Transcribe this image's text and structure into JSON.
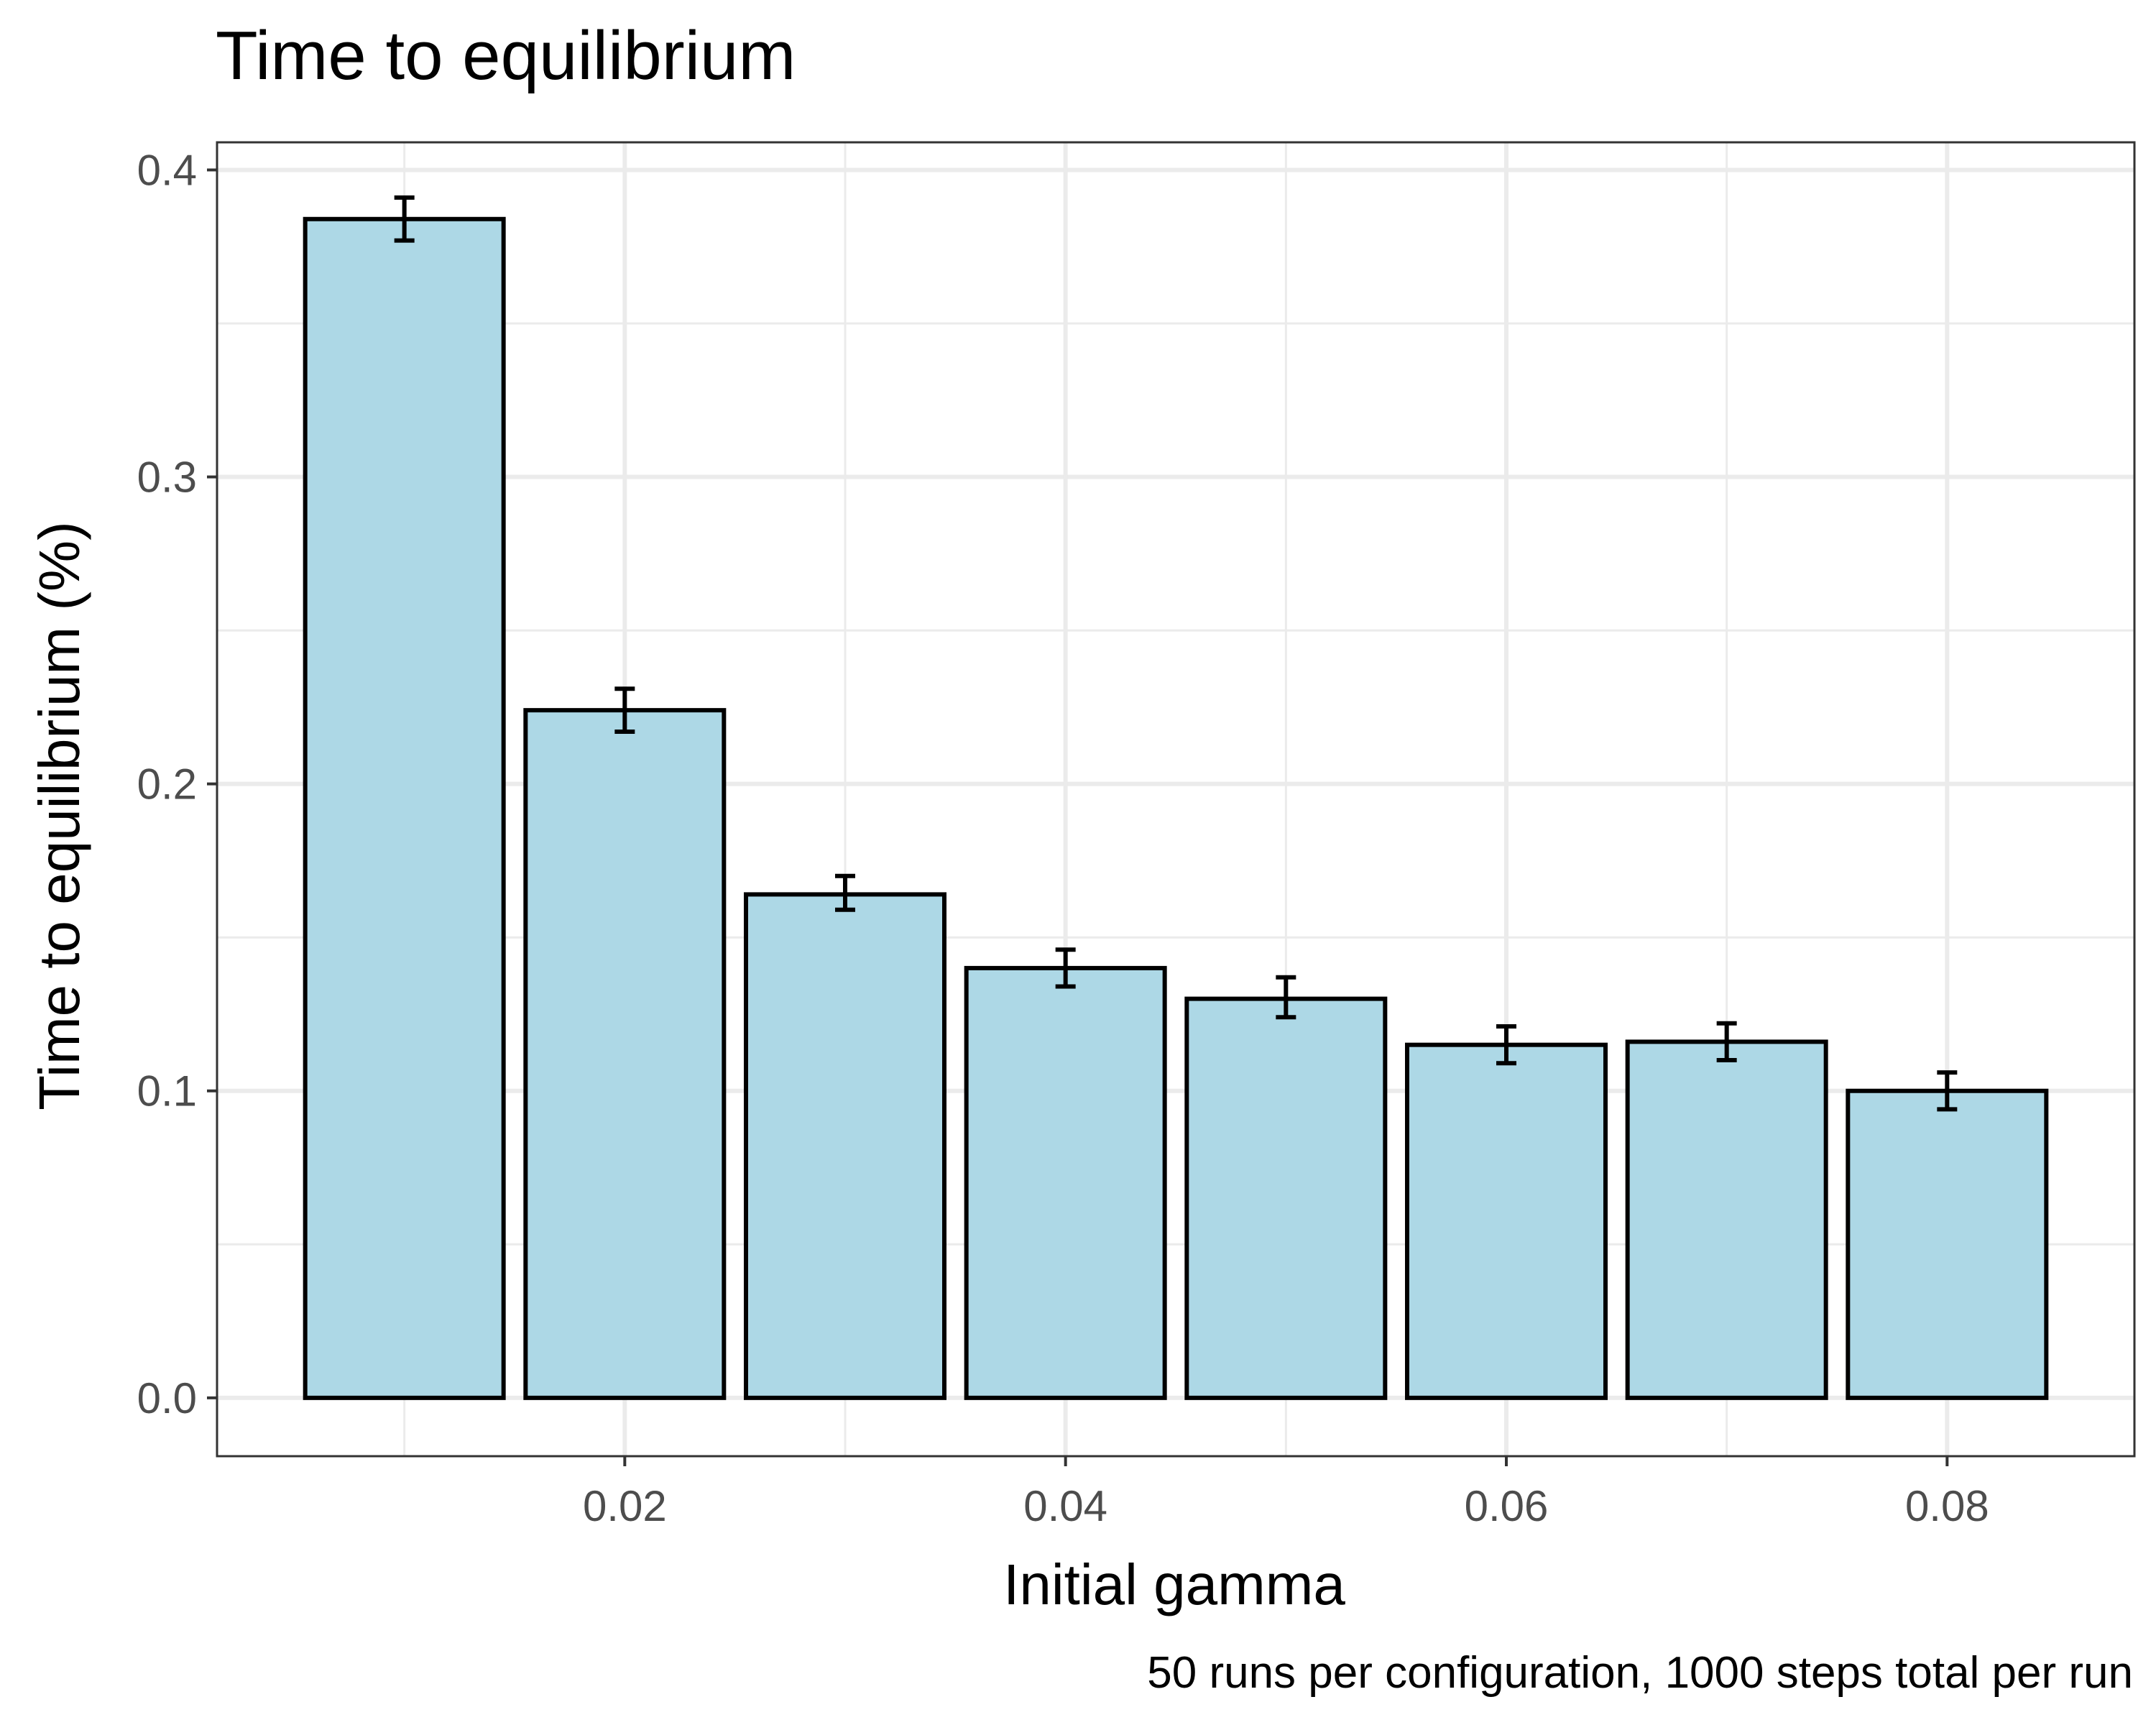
{
  "chart_data": {
    "type": "bar",
    "title": "Time to equilibrium",
    "caption": "50 runs per configuration, 1000 steps total per run",
    "xlabel": "Initial gamma",
    "ylabel": "Time to equilibrium (%)",
    "x": [
      0.01,
      0.02,
      0.03,
      0.04,
      0.05,
      0.06,
      0.07,
      0.08
    ],
    "values": [
      0.384,
      0.224,
      0.164,
      0.14,
      0.13,
      0.115,
      0.116,
      0.1
    ],
    "error_low": [
      0.377,
      0.217,
      0.159,
      0.134,
      0.124,
      0.109,
      0.11,
      0.094
    ],
    "error_high": [
      0.391,
      0.231,
      0.17,
      0.146,
      0.137,
      0.121,
      0.122,
      0.106
    ],
    "bar_width": 0.009,
    "xlim": [
      0.0015,
      0.0885
    ],
    "ylim": [
      -0.019,
      0.409
    ],
    "xticks": [
      0.02,
      0.04,
      0.06,
      0.08
    ],
    "xtick_labels": [
      "0.02",
      "0.04",
      "0.06",
      "0.08"
    ],
    "xminor": [
      0.01,
      0.03,
      0.05,
      0.07
    ],
    "yticks": [
      0.0,
      0.1,
      0.2,
      0.3,
      0.4
    ],
    "ytick_labels": [
      "0.0",
      "0.1",
      "0.2",
      "0.3",
      "0.4"
    ],
    "yminor": [
      0.05,
      0.15,
      0.25,
      0.35
    ],
    "grid": true,
    "legend": "none",
    "colors": {
      "bar_fill": "#add8e6",
      "bar_stroke": "#000000",
      "grid": "#ebebeb",
      "panel_border": "#333333",
      "tick_text": "#4d4d4d",
      "text": "#000000"
    }
  }
}
